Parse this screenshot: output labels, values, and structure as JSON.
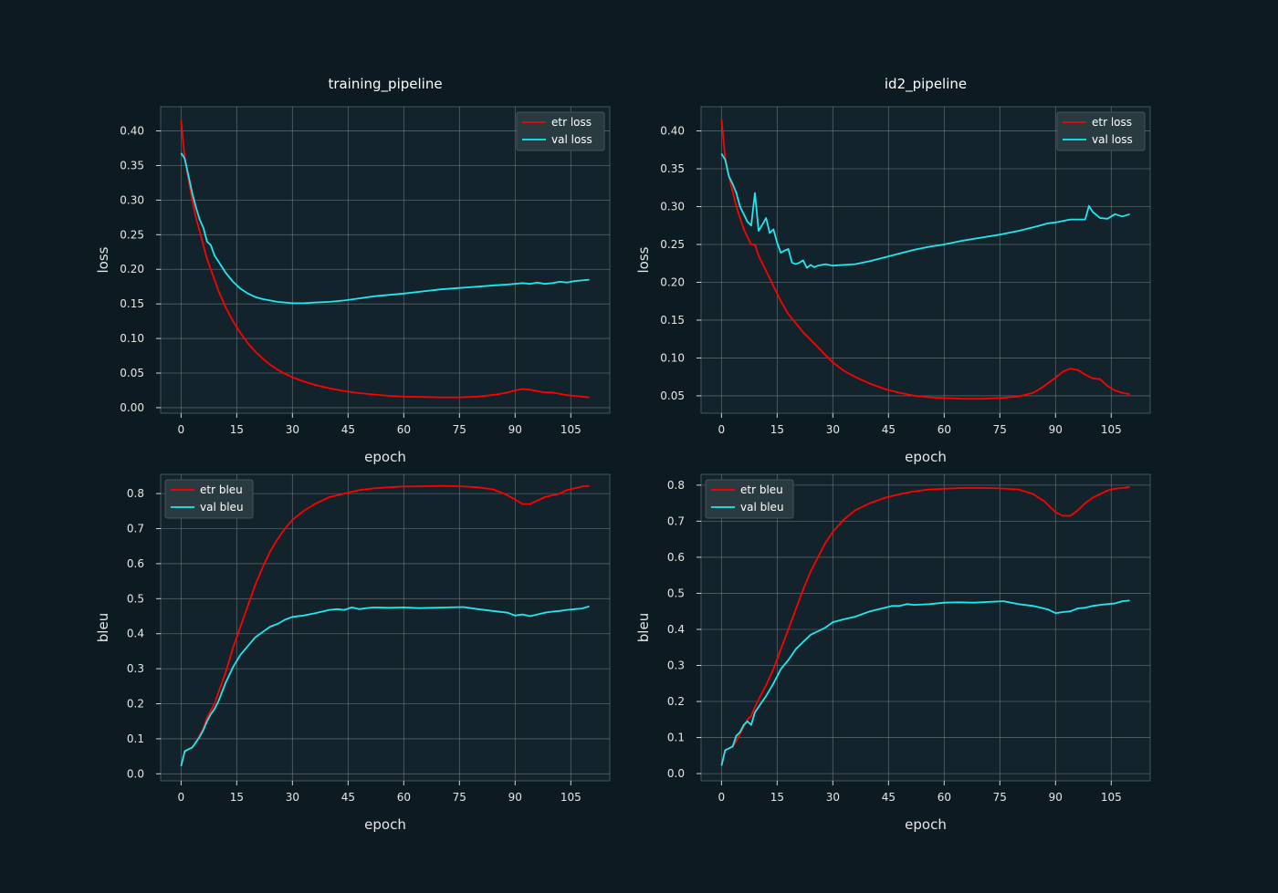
{
  "chart_data": [
    {
      "type": "line",
      "title": "training_pipeline",
      "xlabel": "epoch",
      "ylabel": "loss",
      "xticks": [
        0,
        15,
        30,
        45,
        60,
        75,
        90,
        105
      ],
      "yticks": [
        0.0,
        0.05,
        0.1,
        0.15,
        0.2,
        0.25,
        0.3,
        0.35,
        0.4
      ],
      "xlim": [
        -5.5,
        115.5
      ],
      "ylim": [
        -0.008,
        0.435
      ],
      "legend": "top-right",
      "series": [
        {
          "name": "etr loss",
          "color": "#ff0000",
          "x": [
            0,
            1,
            2,
            3,
            4,
            5,
            6,
            7,
            8,
            9,
            10,
            12,
            14,
            16,
            18,
            20,
            22,
            24,
            26,
            28,
            30,
            33,
            36,
            40,
            44,
            48,
            52,
            56,
            60,
            65,
            70,
            75,
            80,
            85,
            88,
            90,
            92,
            94,
            96,
            98,
            100,
            102,
            104,
            106,
            108,
            110
          ],
          "y": [
            0.415,
            0.36,
            0.33,
            0.3,
            0.275,
            0.255,
            0.235,
            0.215,
            0.2,
            0.185,
            0.17,
            0.145,
            0.125,
            0.108,
            0.093,
            0.081,
            0.071,
            0.062,
            0.055,
            0.049,
            0.044,
            0.038,
            0.033,
            0.028,
            0.024,
            0.021,
            0.019,
            0.017,
            0.016,
            0.0155,
            0.015,
            0.015,
            0.016,
            0.019,
            0.022,
            0.025,
            0.027,
            0.026,
            0.024,
            0.022,
            0.022,
            0.02,
            0.018,
            0.017,
            0.016,
            0.015
          ]
        },
        {
          "name": "val loss",
          "color": "#1ee8f0",
          "x": [
            0,
            1,
            2,
            3,
            4,
            5,
            6,
            7,
            8,
            9,
            10,
            12,
            14,
            16,
            18,
            20,
            22,
            24,
            26,
            28,
            30,
            33,
            36,
            40,
            44,
            48,
            52,
            56,
            60,
            65,
            70,
            75,
            80,
            85,
            88,
            90,
            92,
            94,
            96,
            98,
            100,
            102,
            104,
            106,
            108,
            110
          ],
          "y": [
            0.368,
            0.36,
            0.335,
            0.31,
            0.29,
            0.272,
            0.26,
            0.24,
            0.235,
            0.22,
            0.212,
            0.195,
            0.182,
            0.172,
            0.165,
            0.16,
            0.157,
            0.155,
            0.153,
            0.152,
            0.151,
            0.151,
            0.152,
            0.153,
            0.155,
            0.158,
            0.161,
            0.163,
            0.165,
            0.168,
            0.171,
            0.173,
            0.175,
            0.177,
            0.178,
            0.179,
            0.18,
            0.179,
            0.181,
            0.179,
            0.18,
            0.182,
            0.181,
            0.183,
            0.184,
            0.185
          ]
        }
      ]
    },
    {
      "type": "line",
      "title": "id2_pipeline",
      "xlabel": "epoch",
      "ylabel": "loss",
      "xticks": [
        0,
        15,
        30,
        45,
        60,
        75,
        90,
        105
      ],
      "yticks": [
        0.05,
        0.1,
        0.15,
        0.2,
        0.25,
        0.3,
        0.35,
        0.4
      ],
      "xlim": [
        -5.5,
        115.5
      ],
      "ylim": [
        0.027,
        0.432
      ],
      "legend": "top-right",
      "series": [
        {
          "name": "etr loss",
          "color": "#ff0000",
          "x": [
            0,
            1,
            2,
            3,
            4,
            5,
            6,
            7,
            8,
            9,
            10,
            11,
            12,
            14,
            16,
            18,
            20,
            22,
            24,
            26,
            28,
            30,
            33,
            36,
            40,
            44,
            48,
            52,
            56,
            60,
            65,
            70,
            75,
            80,
            84,
            87,
            90,
            92,
            94,
            96,
            98,
            100,
            102,
            104,
            106,
            108,
            110
          ],
          "y": [
            0.415,
            0.365,
            0.34,
            0.32,
            0.3,
            0.285,
            0.27,
            0.26,
            0.25,
            0.25,
            0.235,
            0.225,
            0.215,
            0.195,
            0.175,
            0.158,
            0.146,
            0.134,
            0.124,
            0.114,
            0.104,
            0.094,
            0.083,
            0.075,
            0.066,
            0.059,
            0.054,
            0.05,
            0.048,
            0.047,
            0.046,
            0.046,
            0.047,
            0.049,
            0.054,
            0.063,
            0.074,
            0.082,
            0.086,
            0.084,
            0.078,
            0.073,
            0.072,
            0.063,
            0.057,
            0.054,
            0.052
          ]
        },
        {
          "name": "val loss",
          "color": "#1ee8f0",
          "x": [
            0,
            1,
            2,
            3,
            4,
            5,
            6,
            7,
            8,
            9,
            10,
            11,
            12,
            13,
            14,
            15,
            16,
            17,
            18,
            19,
            20,
            21,
            22,
            23,
            24,
            25,
            26,
            28,
            30,
            33,
            36,
            40,
            44,
            48,
            52,
            56,
            60,
            65,
            70,
            75,
            80,
            85,
            88,
            90,
            92,
            94,
            96,
            98,
            99,
            100,
            102,
            104,
            106,
            108,
            110
          ],
          "y": [
            0.37,
            0.362,
            0.34,
            0.33,
            0.318,
            0.3,
            0.29,
            0.28,
            0.275,
            0.318,
            0.268,
            0.276,
            0.285,
            0.265,
            0.27,
            0.252,
            0.239,
            0.242,
            0.244,
            0.226,
            0.224,
            0.226,
            0.229,
            0.219,
            0.223,
            0.22,
            0.222,
            0.224,
            0.222,
            0.223,
            0.224,
            0.228,
            0.233,
            0.238,
            0.243,
            0.247,
            0.25,
            0.255,
            0.259,
            0.263,
            0.268,
            0.274,
            0.278,
            0.279,
            0.281,
            0.283,
            0.283,
            0.283,
            0.301,
            0.293,
            0.285,
            0.284,
            0.29,
            0.287,
            0.29
          ]
        }
      ]
    },
    {
      "type": "line",
      "title": "",
      "xlabel": "epoch",
      "ylabel": "bleu",
      "xticks": [
        0,
        15,
        30,
        45,
        60,
        75,
        90,
        105
      ],
      "yticks": [
        0.0,
        0.1,
        0.2,
        0.3,
        0.4,
        0.5,
        0.6,
        0.7,
        0.8
      ],
      "xlim": [
        -5.5,
        115.5
      ],
      "ylim": [
        -0.02,
        0.855
      ],
      "legend": "top-left",
      "series": [
        {
          "name": "etr bleu",
          "color": "#ff0000",
          "x": [
            0,
            1,
            2,
            3,
            4,
            5,
            6,
            7,
            8,
            9,
            10,
            12,
            14,
            16,
            18,
            20,
            22,
            24,
            26,
            28,
            30,
            33,
            36,
            40,
            44,
            48,
            52,
            56,
            60,
            65,
            70,
            75,
            80,
            84,
            87,
            90,
            92,
            94,
            96,
            98,
            100,
            102,
            104,
            106,
            108,
            110
          ],
          "y": [
            0.025,
            0.062,
            0.07,
            0.075,
            0.09,
            0.11,
            0.13,
            0.16,
            0.18,
            0.2,
            0.23,
            0.29,
            0.36,
            0.42,
            0.48,
            0.54,
            0.59,
            0.635,
            0.67,
            0.7,
            0.725,
            0.75,
            0.77,
            0.79,
            0.8,
            0.81,
            0.815,
            0.818,
            0.82,
            0.821,
            0.822,
            0.821,
            0.818,
            0.812,
            0.8,
            0.783,
            0.77,
            0.77,
            0.78,
            0.79,
            0.795,
            0.8,
            0.81,
            0.815,
            0.82,
            0.822
          ]
        },
        {
          "name": "val bleu",
          "color": "#1ee8f0",
          "x": [
            0,
            1,
            2,
            3,
            4,
            5,
            6,
            7,
            8,
            9,
            10,
            12,
            14,
            16,
            18,
            20,
            22,
            24,
            26,
            28,
            30,
            33,
            36,
            40,
            42,
            44,
            46,
            48,
            50,
            52,
            56,
            60,
            64,
            68,
            72,
            76,
            80,
            84,
            88,
            90,
            92,
            94,
            96,
            98,
            100,
            102,
            104,
            106,
            108,
            110
          ],
          "y": [
            0.022,
            0.065,
            0.07,
            0.075,
            0.09,
            0.105,
            0.125,
            0.15,
            0.17,
            0.185,
            0.205,
            0.26,
            0.305,
            0.34,
            0.365,
            0.39,
            0.405,
            0.42,
            0.428,
            0.44,
            0.448,
            0.452,
            0.458,
            0.468,
            0.47,
            0.468,
            0.475,
            0.47,
            0.473,
            0.475,
            0.474,
            0.475,
            0.473,
            0.474,
            0.475,
            0.476,
            0.47,
            0.465,
            0.46,
            0.452,
            0.455,
            0.45,
            0.455,
            0.46,
            0.463,
            0.465,
            0.468,
            0.47,
            0.472,
            0.478
          ]
        }
      ]
    },
    {
      "type": "line",
      "title": "",
      "xlabel": "epoch",
      "ylabel": "bleu",
      "xticks": [
        0,
        15,
        30,
        45,
        60,
        75,
        90,
        105
      ],
      "yticks": [
        0.0,
        0.1,
        0.2,
        0.3,
        0.4,
        0.5,
        0.6,
        0.7,
        0.8
      ],
      "xlim": [
        -5.5,
        115.5
      ],
      "ylim": [
        -0.02,
        0.83
      ],
      "legend": "top-left",
      "series": [
        {
          "name": "etr bleu",
          "color": "#ff0000",
          "x": [
            0,
            1,
            2,
            3,
            4,
            5,
            6,
            7,
            8,
            9,
            10,
            12,
            14,
            16,
            18,
            20,
            22,
            24,
            26,
            28,
            30,
            33,
            36,
            40,
            44,
            48,
            52,
            56,
            60,
            65,
            70,
            75,
            80,
            84,
            87,
            90,
            92,
            94,
            96,
            98,
            100,
            102,
            104,
            106,
            108,
            110
          ],
          "y": [
            0.025,
            0.065,
            0.07,
            0.075,
            0.09,
            0.11,
            0.13,
            0.15,
            0.16,
            0.185,
            0.205,
            0.245,
            0.29,
            0.345,
            0.4,
            0.455,
            0.51,
            0.56,
            0.6,
            0.64,
            0.67,
            0.705,
            0.73,
            0.75,
            0.765,
            0.775,
            0.783,
            0.788,
            0.79,
            0.792,
            0.792,
            0.791,
            0.788,
            0.775,
            0.755,
            0.725,
            0.715,
            0.715,
            0.73,
            0.75,
            0.765,
            0.775,
            0.785,
            0.79,
            0.792,
            0.795
          ]
        },
        {
          "name": "val bleu",
          "color": "#1ee8f0",
          "x": [
            0,
            1,
            2,
            3,
            4,
            5,
            6,
            7,
            8,
            9,
            10,
            12,
            14,
            16,
            18,
            20,
            22,
            24,
            26,
            28,
            30,
            33,
            36,
            40,
            42,
            44,
            46,
            48,
            50,
            52,
            56,
            60,
            64,
            68,
            72,
            76,
            80,
            84,
            88,
            90,
            92,
            94,
            96,
            98,
            100,
            102,
            104,
            106,
            108,
            110
          ],
          "y": [
            0.022,
            0.065,
            0.07,
            0.075,
            0.105,
            0.115,
            0.135,
            0.145,
            0.135,
            0.17,
            0.185,
            0.215,
            0.25,
            0.29,
            0.315,
            0.345,
            0.365,
            0.385,
            0.395,
            0.405,
            0.42,
            0.428,
            0.435,
            0.45,
            0.455,
            0.46,
            0.465,
            0.465,
            0.47,
            0.468,
            0.47,
            0.474,
            0.475,
            0.474,
            0.476,
            0.478,
            0.47,
            0.465,
            0.455,
            0.445,
            0.448,
            0.45,
            0.458,
            0.46,
            0.465,
            0.468,
            0.47,
            0.472,
            0.478,
            0.48
          ]
        }
      ]
    }
  ]
}
